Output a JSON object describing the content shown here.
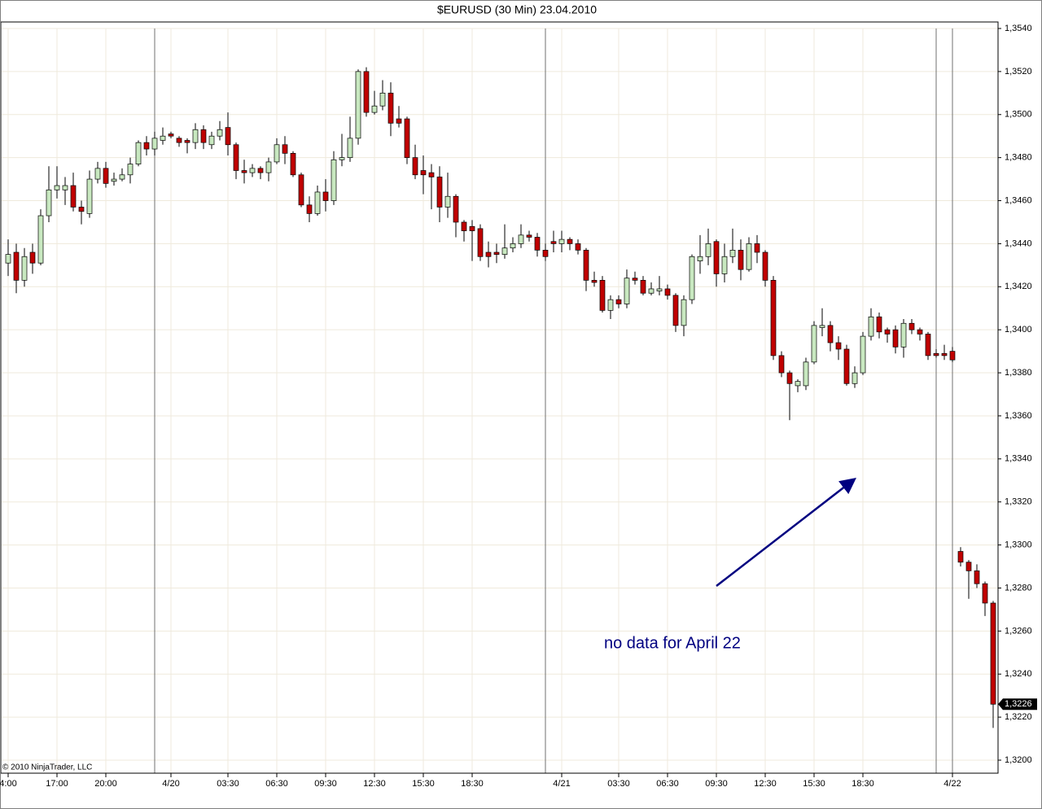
{
  "chart_data": {
    "type": "candlestick",
    "title": "$EURUSD (30 Min)  23.04.2010",
    "annotation": "no data for April 22",
    "copyright": "© 2010 NinjaTrader, LLC",
    "last_label": "1,3226",
    "up_color": "#c8e8c0",
    "down_color": "#c00000",
    "grid": true,
    "categories": [
      "4:00",
      null,
      null,
      null,
      null,
      null,
      "17:00",
      null,
      null,
      null,
      null,
      null,
      "20:00",
      null,
      null,
      null,
      null,
      null,
      null,
      null,
      "4/20",
      null,
      null,
      null,
      null,
      null,
      null,
      "03:30",
      null,
      null,
      null,
      null,
      null,
      "06:30",
      null,
      null,
      null,
      null,
      null,
      "09:30",
      null,
      null,
      null,
      null,
      null,
      "12:30",
      null,
      null,
      null,
      null,
      null,
      "15:30",
      null,
      null,
      null,
      null,
      null,
      "18:30",
      null,
      null,
      null,
      null,
      null,
      null,
      null,
      null,
      null,
      null,
      "4/21",
      null,
      null,
      null,
      null,
      null,
      null,
      "03:30",
      null,
      null,
      null,
      null,
      null,
      "06:30",
      null,
      null,
      null,
      null,
      null,
      "09:30",
      null,
      null,
      null,
      null,
      null,
      "12:30",
      null,
      null,
      null,
      null,
      null,
      "15:30",
      null,
      null,
      null,
      null,
      null,
      "18:30",
      null,
      null,
      null,
      null,
      null,
      null,
      null,
      null,
      null,
      null,
      "4/22",
      null,
      null,
      null,
      null,
      null
    ],
    "open": [
      1.3431,
      1.3436,
      1.3423,
      1.3436,
      1.3431,
      1.3453,
      1.3465,
      1.3465,
      1.3467,
      1.3457,
      1.3454,
      1.347,
      1.3475,
      1.3469,
      1.347,
      1.3472,
      1.3477,
      1.3487,
      1.3484,
      1.3488,
      1.3491,
      1.3489,
      1.3488,
      1.3487,
      1.3493,
      1.3486,
      1.349,
      1.3494,
      1.3486,
      1.3474,
      1.3473,
      1.3475,
      1.3473,
      1.3478,
      1.3486,
      1.3482,
      1.3472,
      1.3458,
      1.3454,
      1.3464,
      1.346,
      1.3479,
      1.348,
      1.3489,
      1.352,
      1.3501,
      1.3504,
      1.351,
      1.3498,
      1.3498,
      1.348,
      1.3474,
      1.3473,
      1.3471,
      1.3457,
      1.3462,
      1.345,
      1.3448,
      1.3447,
      1.3436,
      1.3436,
      1.3435,
      1.3438,
      1.344,
      1.3444,
      1.3443,
      1.3437,
      1.3441,
      1.344,
      1.3442,
      1.344,
      1.3437,
      1.3423,
      1.3423,
      1.3409,
      1.3414,
      1.3412,
      1.3424,
      1.3423,
      1.3417,
      1.3418,
      1.3419,
      1.3416,
      1.3402,
      1.3414,
      1.3432,
      1.3434,
      1.3441,
      1.3426,
      1.3434,
      1.3437,
      1.3428,
      1.344,
      1.3436,
      1.3423,
      1.3388,
      1.338,
      1.3374,
      1.3374,
      1.3385,
      1.3401,
      1.3402,
      1.3394,
      1.3391,
      1.3375,
      1.338,
      1.3397,
      1.3406,
      1.34,
      1.34,
      1.3392,
      1.3403,
      1.34,
      1.3398,
      1.3389,
      1.3389,
      1.339,
      1.3297,
      1.3292,
      1.3288,
      1.3282,
      1.3273
    ],
    "high": [
      1.3442,
      1.344,
      1.3438,
      1.344,
      1.3456,
      1.3476,
      1.3476,
      1.3471,
      1.3473,
      1.346,
      1.3474,
      1.3478,
      1.3478,
      1.3473,
      1.3475,
      1.348,
      1.3488,
      1.349,
      1.3492,
      1.3494,
      1.3492,
      1.349,
      1.3489,
      1.3496,
      1.3495,
      1.3492,
      1.3497,
      1.3501,
      1.3487,
      1.3479,
      1.3477,
      1.3476,
      1.348,
      1.3489,
      1.349,
      1.3483,
      1.3473,
      1.3462,
      1.3467,
      1.347,
      1.3483,
      1.3491,
      1.3499,
      1.3521,
      1.3522,
      1.3511,
      1.3516,
      1.3515,
      1.3504,
      1.3499,
      1.3486,
      1.3481,
      1.3477,
      1.3476,
      1.3473,
      1.3463,
      1.3451,
      1.3451,
      1.3449,
      1.3441,
      1.344,
      1.3449,
      1.3443,
      1.3449,
      1.3446,
      1.3445,
      1.344,
      1.3446,
      1.3446,
      1.3443,
      1.3442,
      1.3438,
      1.3427,
      1.3425,
      1.3416,
      1.3416,
      1.3428,
      1.3427,
      1.3425,
      1.3422,
      1.3425,
      1.3421,
      1.3417,
      1.3416,
      1.3435,
      1.3444,
      1.3447,
      1.3442,
      1.344,
      1.3447,
      1.3442,
      1.3443,
      1.3444,
      1.3437,
      1.3425,
      1.339,
      1.3381,
      1.3377,
      1.3387,
      1.3404,
      1.341,
      1.3404,
      1.3397,
      1.3393,
      1.3383,
      1.3399,
      1.341,
      1.3408,
      1.3401,
      1.3402,
      1.3405,
      1.3405,
      1.3401,
      1.3399,
      1.3391,
      1.3393,
      1.3392,
      1.3299,
      1.3293,
      1.3291,
      1.3283,
      1.3274
    ],
    "low": [
      1.3425,
      1.3417,
      1.342,
      1.3426,
      1.343,
      1.345,
      1.3461,
      1.3458,
      1.3455,
      1.3449,
      1.3452,
      1.3468,
      1.3466,
      1.3467,
      1.3469,
      1.3468,
      1.3476,
      1.3481,
      1.3481,
      1.3486,
      1.3489,
      1.3485,
      1.3482,
      1.3484,
      1.3484,
      1.3484,
      1.3488,
      1.3481,
      1.347,
      1.3468,
      1.3471,
      1.347,
      1.3469,
      1.3477,
      1.3477,
      1.3471,
      1.3457,
      1.345,
      1.3453,
      1.3455,
      1.3458,
      1.3476,
      1.3478,
      1.3486,
      1.3499,
      1.35,
      1.3502,
      1.349,
      1.3494,
      1.3477,
      1.347,
      1.3463,
      1.3456,
      1.345,
      1.3452,
      1.3443,
      1.3441,
      1.3432,
      1.3432,
      1.3429,
      1.3431,
      1.3433,
      1.3436,
      1.3438,
      1.3441,
      1.3434,
      1.3432,
      1.3436,
      1.3436,
      1.3437,
      1.3435,
      1.3418,
      1.342,
      1.3408,
      1.3405,
      1.341,
      1.341,
      1.3421,
      1.3416,
      1.3416,
      1.3416,
      1.3414,
      1.3399,
      1.3397,
      1.3412,
      1.3426,
      1.343,
      1.342,
      1.3422,
      1.3431,
      1.3423,
      1.3427,
      1.3431,
      1.342,
      1.3386,
      1.3378,
      1.3358,
      1.3371,
      1.3372,
      1.3384,
      1.3397,
      1.339,
      1.3386,
      1.3374,
      1.3373,
      1.3379,
      1.3395,
      1.3396,
      1.3394,
      1.3389,
      1.3387,
      1.3398,
      1.3395,
      1.3386,
      1.3387,
      1.3386,
      1.3385,
      1.329,
      1.3275,
      1.328,
      1.3267,
      1.3215
    ],
    "close": [
      1.3435,
      1.3423,
      1.3434,
      1.3431,
      1.3453,
      1.3465,
      1.3467,
      1.3467,
      1.3457,
      1.3455,
      1.347,
      1.3475,
      1.3468,
      1.347,
      1.3472,
      1.3477,
      1.3487,
      1.3484,
      1.3489,
      1.349,
      1.349,
      1.3487,
      1.3487,
      1.3493,
      1.3487,
      1.349,
      1.3493,
      1.3486,
      1.3474,
      1.3473,
      1.3475,
      1.3473,
      1.3478,
      1.3486,
      1.3482,
      1.3472,
      1.3458,
      1.3454,
      1.3464,
      1.346,
      1.3479,
      1.348,
      1.3489,
      1.352,
      1.3501,
      1.3504,
      1.351,
      1.3496,
      1.3496,
      1.348,
      1.3472,
      1.3472,
      1.3471,
      1.3457,
      1.3462,
      1.345,
      1.3446,
      1.3446,
      1.3434,
      1.3434,
      1.3435,
      1.3438,
      1.344,
      1.3444,
      1.3443,
      1.3437,
      1.3434,
      1.344,
      1.3442,
      1.344,
      1.3437,
      1.3423,
      1.3422,
      1.3409,
      1.3414,
      1.3412,
      1.3424,
      1.3423,
      1.3417,
      1.3419,
      1.3419,
      1.3416,
      1.3402,
      1.3414,
      1.3434,
      1.3434,
      1.344,
      1.3426,
      1.3434,
      1.3437,
      1.3428,
      1.344,
      1.3436,
      1.3423,
      1.3388,
      1.338,
      1.3375,
      1.3376,
      1.3385,
      1.3402,
      1.3402,
      1.3394,
      1.3391,
      1.3375,
      1.338,
      1.3397,
      1.3406,
      1.3399,
      1.3398,
      1.3392,
      1.3403,
      1.34,
      1.3398,
      1.3388,
      1.3388,
      1.3388,
      1.3386,
      1.3292,
      1.3288,
      1.3282,
      1.3273,
      1.3226
    ],
    "ylim": [
      1.32,
      1.354
    ],
    "yticks": [
      {
        "value": 1.32,
        "label": "1,3200"
      },
      {
        "value": 1.322,
        "label": "1,3220"
      },
      {
        "value": 1.324,
        "label": "1,3240"
      },
      {
        "value": 1.326,
        "label": "1,3260"
      },
      {
        "value": 1.328,
        "label": "1,3280"
      },
      {
        "value": 1.33,
        "label": "1,3300"
      },
      {
        "value": 1.332,
        "label": "1,3320"
      },
      {
        "value": 1.334,
        "label": "1,3340"
      },
      {
        "value": 1.336,
        "label": "1,3360"
      },
      {
        "value": 1.338,
        "label": "1,3380"
      },
      {
        "value": 1.34,
        "label": "1,3400"
      },
      {
        "value": 1.342,
        "label": "1,3420"
      },
      {
        "value": 1.344,
        "label": "1,3440"
      },
      {
        "value": 1.346,
        "label": "1,3460"
      },
      {
        "value": 1.348,
        "label": "1,3480"
      },
      {
        "value": 1.35,
        "label": "1,3500"
      },
      {
        "value": 1.352,
        "label": "1,3520"
      },
      {
        "value": 1.354,
        "label": "1,3540"
      }
    ]
  }
}
